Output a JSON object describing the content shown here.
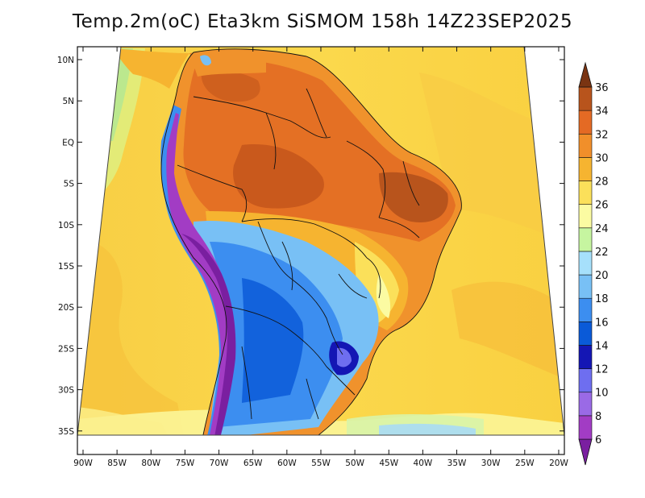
{
  "title": "Temp.2m(oC) Eta3km SiSMOM 158h 14Z23SEP2025",
  "map": {
    "lat_ticks": [
      "10N",
      "5N",
      "EQ",
      "5S",
      "10S",
      "15S",
      "20S",
      "25S",
      "30S",
      "35S"
    ],
    "lon_ticks": [
      "90W",
      "85W",
      "80W",
      "75W",
      "70W",
      "65W",
      "60W",
      "55W",
      "50W",
      "45W",
      "40W",
      "35W",
      "30W",
      "25W",
      "20W"
    ]
  },
  "colorbar": {
    "levels": [
      "6",
      "8",
      "10",
      "12",
      "14",
      "16",
      "18",
      "20",
      "22",
      "24",
      "26",
      "28",
      "30",
      "32",
      "34",
      "36"
    ],
    "colors": [
      "#7a1fa0",
      "#a23cc4",
      "#9a6ae6",
      "#6e6ef0",
      "#1416b4",
      "#0a5ad8",
      "#3c8ef0",
      "#78c0f5",
      "#a6e0fb",
      "#c6f5a0",
      "#fbfba2",
      "#fbe05a",
      "#f6b430",
      "#f18f2a",
      "#e46a24",
      "#b8541c",
      "#7a3412"
    ]
  }
}
